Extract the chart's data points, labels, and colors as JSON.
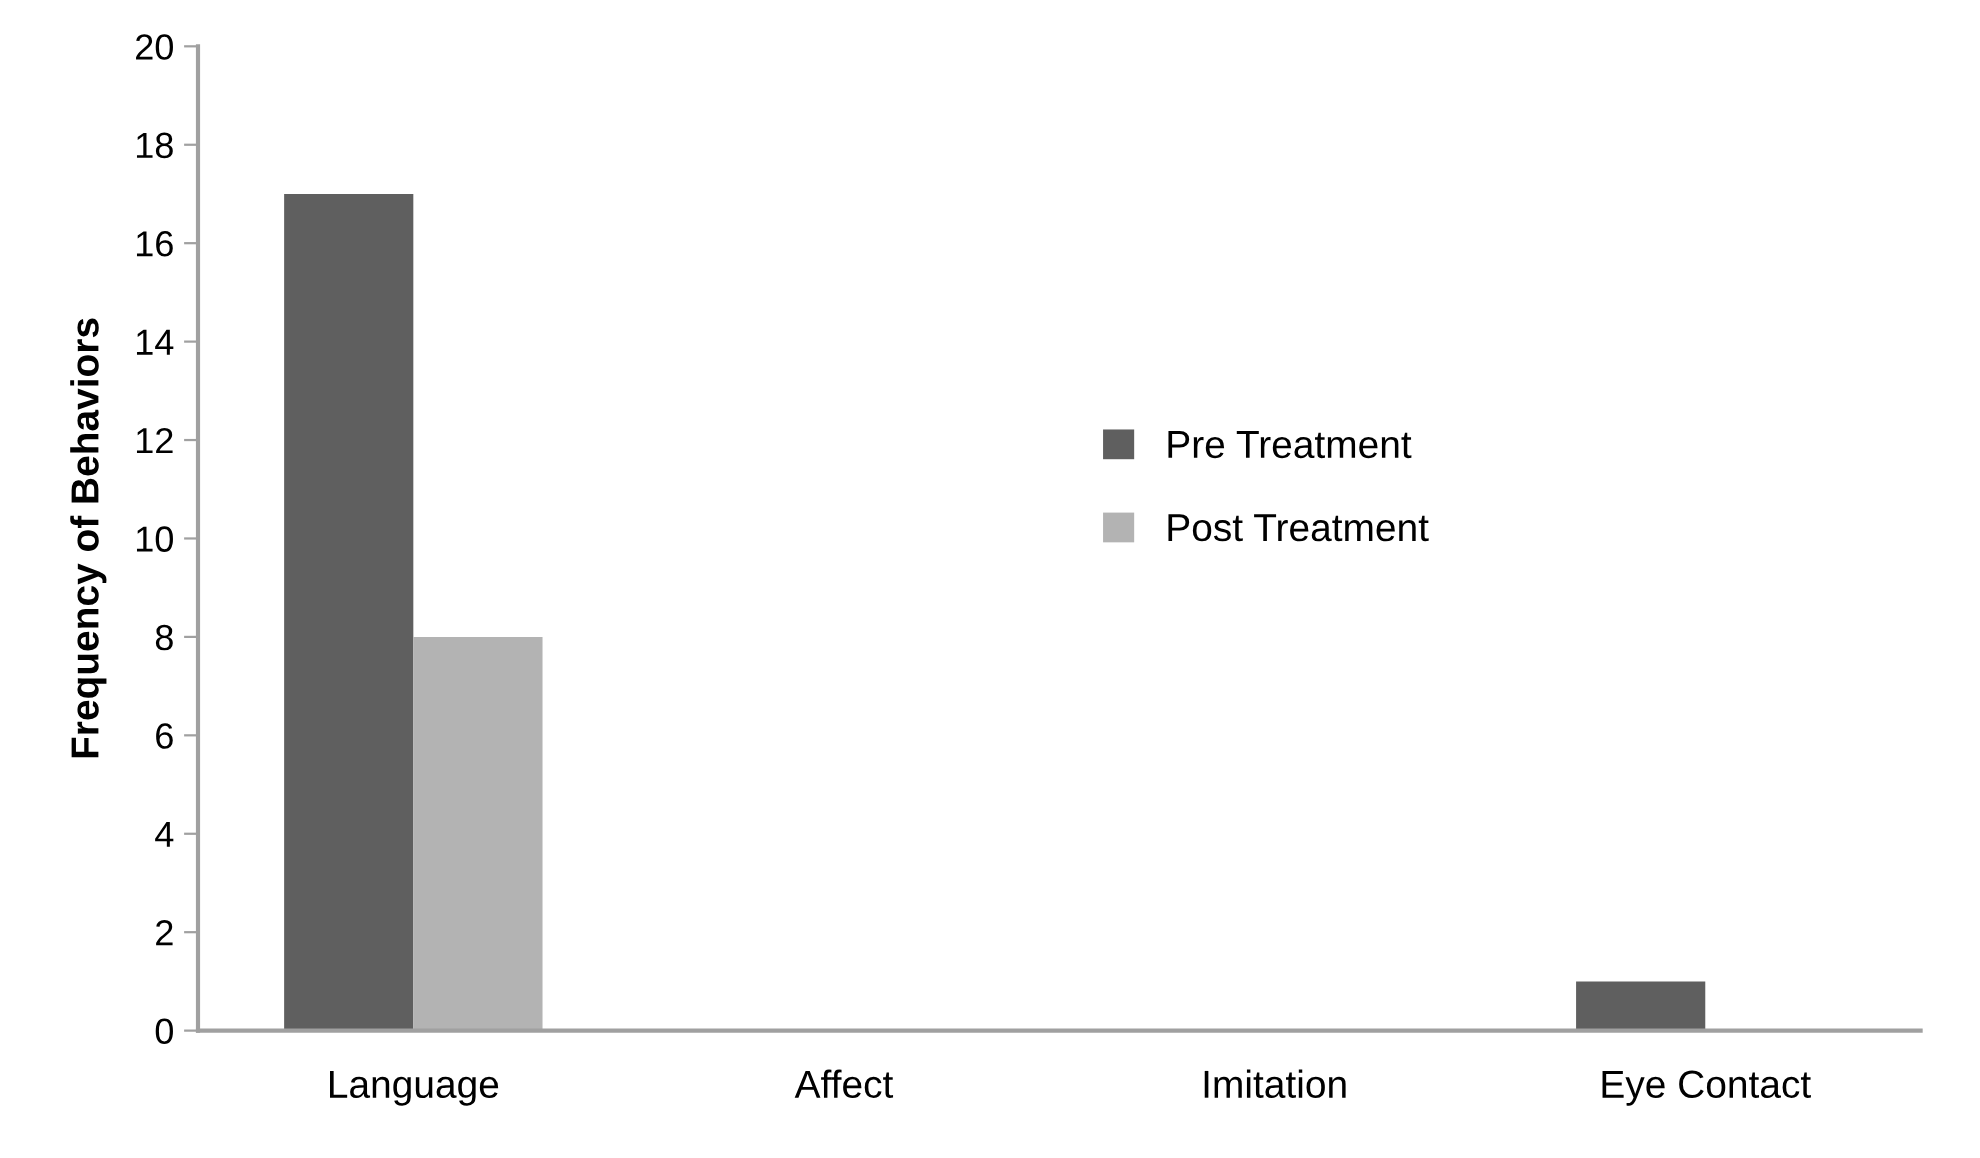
{
  "chart_data": {
    "type": "bar",
    "ylabel": "Frequency of Behaviors",
    "categories": [
      "Language",
      "Affect",
      "Imitation",
      "Eye Contact"
    ],
    "series": [
      {
        "name": "Pre Treatment",
        "color": "#5f5f5f",
        "values": [
          17,
          0,
          0,
          1
        ]
      },
      {
        "name": "Post Treatment",
        "color": "#b3b3b3",
        "values": [
          8,
          0,
          0,
          0
        ]
      }
    ],
    "ylim": [
      0,
      20
    ],
    "yticks": [
      0,
      2,
      4,
      6,
      8,
      10,
      12,
      14,
      16,
      18,
      20
    ],
    "grid": false,
    "legend": "center"
  }
}
